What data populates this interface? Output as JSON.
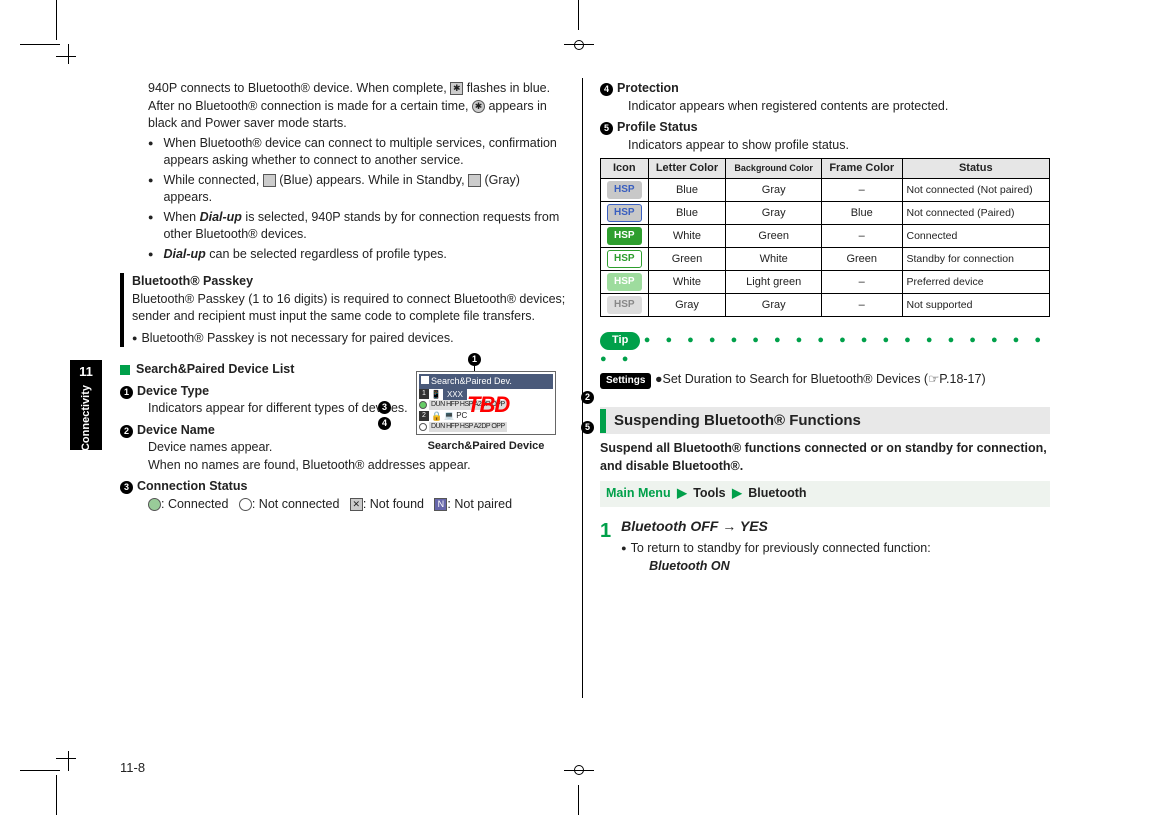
{
  "side": {
    "chapter": "11",
    "label": "Connectivity"
  },
  "pageNumber": "11-8",
  "left": {
    "intro": [
      "940P connects to Bluetooth® device. When complete, ",
      " flashes in blue. After no Bluetooth® connection is made for a certain time, ",
      " appears in black and Power saver mode starts."
    ],
    "bullets": [
      "When Bluetooth® device can connect to multiple services, confirmation appears asking whether to connect to another service.",
      "While connected,  (Blue) appears. While in Standby,  (Gray) appears.",
      "When Dial-up is selected, 940P stands by for connection requests from other Bluetooth® devices.",
      "Dial-up can be selected regardless of profile types."
    ],
    "passkey": {
      "title": "Bluetooth® Passkey",
      "body": "Bluetooth® Passkey (1 to 16 digits) is required to connect Bluetooth® devices; sender and recipient must input the same code to complete file transfers.",
      "note": "Bluetooth® Passkey is not necessary for paired devices."
    },
    "listTitle": "Search&Paired Device List",
    "items": {
      "i1": {
        "t": "Device Type",
        "d": "Indicators appear for different types of devices."
      },
      "i2": {
        "t": "Device Name",
        "d1": "Device names appear.",
        "d2": "When no names are found, Bluetooth® addresses appear."
      },
      "i3": {
        "t": "Connection Status",
        "s1": ": Connected",
        "s2": ": Not connected",
        "s3": ": Not found",
        "s4": ": Not paired"
      }
    },
    "fig": {
      "title": "Search&Paired Dev.",
      "row1": "XXX",
      "row2": "PC",
      "proto1": "DUN HFP HSP A2DP OPP",
      "proto2": "DUN HFP HSP A2DP OPP",
      "tbd": "TBD",
      "caption": "Search&Paired Device"
    }
  },
  "right": {
    "i4": {
      "t": "Protection",
      "d": "Indicator appears when registered contents are protected."
    },
    "i5": {
      "t": "Profile Status",
      "d": "Indicators appear to show profile status."
    },
    "table": {
      "head": [
        "Icon",
        "Letter Color",
        "Background Color",
        "Frame Color",
        "Status"
      ],
      "rows": [
        {
          "letter": "Blue",
          "bg": "Gray",
          "frame": "–",
          "status": "Not connected (Not paired)",
          "badge_fg": "#3a5fbf",
          "badge_bg": "#c8c8c8",
          "badge_border": "transparent"
        },
        {
          "letter": "Blue",
          "bg": "Gray",
          "frame": "Blue",
          "status": "Not connected (Paired)",
          "badge_fg": "#3a5fbf",
          "badge_bg": "#c8c8c8",
          "badge_border": "#3a5fbf"
        },
        {
          "letter": "White",
          "bg": "Green",
          "frame": "–",
          "status": "Connected",
          "badge_fg": "#ffffff",
          "badge_bg": "#2e9e2e",
          "badge_border": "transparent"
        },
        {
          "letter": "Green",
          "bg": "White",
          "frame": "Green",
          "status": "Standby for connection",
          "badge_fg": "#2e9e2e",
          "badge_bg": "#ffffff",
          "badge_border": "#2e9e2e"
        },
        {
          "letter": "White",
          "bg": "Light green",
          "frame": "–",
          "status": "Preferred device",
          "badge_fg": "#ffffff",
          "badge_bg": "#9edc9e",
          "badge_border": "transparent"
        },
        {
          "letter": "Gray",
          "bg": "Gray",
          "frame": "–",
          "status": "Not supported",
          "badge_fg": "#888888",
          "badge_bg": "#dddddd",
          "badge_border": "transparent"
        }
      ]
    },
    "tipLabel": "Tip",
    "settingsLabel": "Settings",
    "settingsText": "Set Duration to Search for Bluetooth® Devices (☞P.18-17)",
    "h2": "Suspending Bluetooth® Functions",
    "lead": "Suspend all Bluetooth® functions connected or on standby for connection, and disable Bluetooth®.",
    "menu": {
      "a": "Main Menu",
      "b": "Tools",
      "c": "Bluetooth"
    },
    "step": {
      "n": "1",
      "cmd": "Bluetooth OFF → YES",
      "note": "To return to standby for previously connected function:",
      "cmd2": "Bluetooth ON"
    }
  }
}
